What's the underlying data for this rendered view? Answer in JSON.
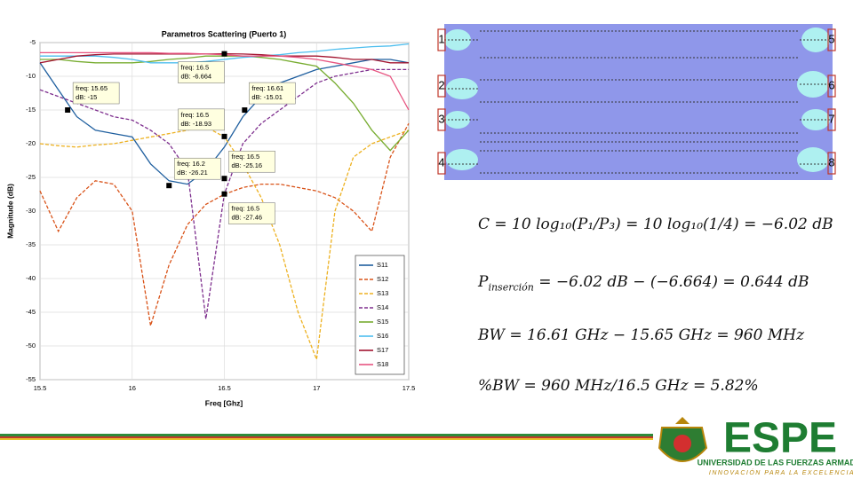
{
  "chart_data": {
    "type": "line",
    "title": "Parametros Scattering (Puerto 1)",
    "x_label": "Freq [Ghz]",
    "y_label": "Magnitude (dB)",
    "x": [
      15.5,
      15.6,
      15.7,
      15.8,
      15.9,
      16.0,
      16.1,
      16.2,
      16.3,
      16.4,
      16.5,
      16.6,
      16.7,
      16.8,
      16.9,
      17.0,
      17.1,
      17.2,
      17.3,
      17.4,
      17.5
    ],
    "xlim": [
      15.5,
      17.5
    ],
    "xticks": [
      15.5,
      16,
      16.5,
      17,
      17.5
    ],
    "ylim": [
      -55,
      -5
    ],
    "yticks": [
      -55,
      -50,
      -45,
      -40,
      -35,
      -30,
      -25,
      -20,
      -15,
      -10,
      -5
    ],
    "grid": true,
    "legend": "lower right",
    "series": [
      {
        "name": "S11",
        "color": "#1f5f9f",
        "dash": false,
        "values": [
          -8,
          -12,
          -16,
          -18,
          -18.5,
          -19,
          -23,
          -25.5,
          -26,
          -24,
          -20.5,
          -16,
          -13,
          -11,
          -10,
          -9,
          -8.5,
          -8,
          -7.5,
          -7.5,
          -8
        ]
      },
      {
        "name": "S12",
        "color": "#d95319",
        "dash": true,
        "values": [
          -27,
          -33,
          -28,
          -25.5,
          -26,
          -30,
          -47,
          -38,
          -32,
          -29,
          -27.5,
          -26.5,
          -26,
          -26,
          -26.5,
          -27,
          -28,
          -30,
          -33,
          -22,
          -17
        ]
      },
      {
        "name": "S13",
        "color": "#edb120",
        "dash": true,
        "values": [
          -20,
          -20.3,
          -20.5,
          -20.2,
          -20,
          -19.5,
          -19,
          -18.5,
          -18,
          -17.5,
          -19,
          -23,
          -28,
          -35,
          -45,
          -52,
          -30,
          -22,
          -20,
          -19,
          -18
        ]
      },
      {
        "name": "S14",
        "color": "#7e2f8e",
        "dash": true,
        "values": [
          -12,
          -13,
          -14,
          -15,
          -16,
          -16.5,
          -18,
          -20,
          -24,
          -46,
          -27.46,
          -20,
          -17,
          -15,
          -13,
          -11,
          -10,
          -9.5,
          -9,
          -9,
          -9
        ]
      },
      {
        "name": "S15",
        "color": "#77ac30",
        "dash": false,
        "values": [
          -7.5,
          -7.5,
          -7.8,
          -8,
          -8,
          -8,
          -7.8,
          -7.5,
          -7.3,
          -7,
          -7,
          -7,
          -7.2,
          -7.5,
          -8,
          -8.5,
          -11,
          -14,
          -18,
          -21,
          -18
        ]
      },
      {
        "name": "S16",
        "color": "#4dbeee",
        "dash": false,
        "values": [
          -7,
          -7,
          -7,
          -7,
          -7.2,
          -7.5,
          -8,
          -8,
          -8,
          -7.8,
          -7.5,
          -7.2,
          -7,
          -6.8,
          -6.5,
          -6.3,
          -6,
          -5.8,
          -5.6,
          -5.5,
          -5.2
        ]
      },
      {
        "name": "S17",
        "color": "#a2142f",
        "dash": false,
        "values": [
          -8,
          -7.5,
          -7,
          -6.8,
          -6.7,
          -6.7,
          -6.7,
          -6.7,
          -6.7,
          -6.7,
          -6.66,
          -6.7,
          -6.8,
          -7,
          -7,
          -7,
          -7.2,
          -7.5,
          -7.5,
          -8,
          -8
        ]
      },
      {
        "name": "S18",
        "color": "#e75480",
        "dash": false,
        "values": [
          -6.5,
          -6.5,
          -6.5,
          -6.5,
          -6.5,
          -6.5,
          -6.5,
          -6.6,
          -6.6,
          -6.7,
          -6.8,
          -7,
          -7,
          -7,
          -7.2,
          -7.5,
          -8,
          -8.5,
          -9,
          -10,
          -15
        ]
      }
    ],
    "annotations": [
      {
        "x": 15.65,
        "y": -15,
        "lines": [
          "freq: 15.65",
          "dB: -15"
        ]
      },
      {
        "x": 16.5,
        "y": -6.664,
        "lines": [
          "freq: 16.5",
          "dB: -6.664"
        ]
      },
      {
        "x": 16.61,
        "y": -15.01,
        "lines": [
          "freq: 16.61",
          "dB: -15.01"
        ]
      },
      {
        "x": 16.5,
        "y": -18.93,
        "lines": [
          "freq: 16.5",
          "dB: -18.93"
        ]
      },
      {
        "x": 16.2,
        "y": -26.21,
        "lines": [
          "freq: 16.2",
          "dB: -26.21"
        ]
      },
      {
        "x": 16.5,
        "y": -25.16,
        "lines": [
          "freq: 16.5",
          "dB: -25.16"
        ]
      },
      {
        "x": 16.5,
        "y": -27.46,
        "lines": [
          "freq: 16.5",
          "dB: -27.46"
        ]
      }
    ]
  },
  "layout_ports": [
    "1",
    "2",
    "3",
    "4",
    "5",
    "6",
    "7",
    "8"
  ],
  "equations": [
    [
      {
        "text": "C = 10 log₁₀(P₁/P₃) = 10 log₁₀(1/4) = −6.02 dB"
      }
    ],
    [
      {
        "text": "P"
      },
      {
        "text": "inserción",
        "sub": true
      },
      {
        "text": " = −6.02 dB − (−6.664) = 0.644 dB"
      }
    ],
    [
      {
        "text": "BW = 16.61 GHz − 15.65 GHz = 960 MHz"
      }
    ],
    [
      {
        "text": "%BW = 960 MHz/16.5 GHz = 5.82%"
      }
    ]
  ],
  "logo": {
    "name": "ESPE",
    "line1": "UNIVERSIDAD DE LAS FUERZAS ARMADAS",
    "line2": "INNOVACIÓN PARA LA EXCELENCIA"
  }
}
